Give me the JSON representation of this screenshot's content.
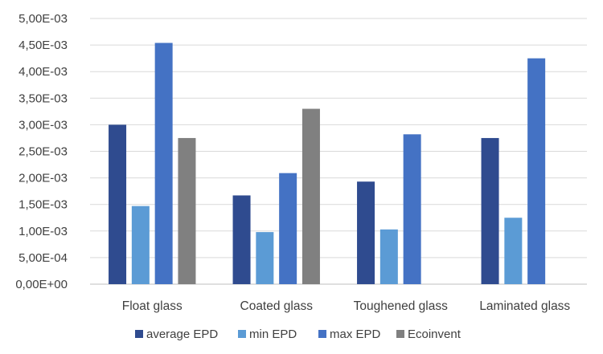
{
  "chart_data": {
    "type": "bar",
    "categories": [
      "Float glass",
      "Coated glass",
      "Toughened glass",
      "Laminated glass"
    ],
    "series": [
      {
        "name": "average EPD",
        "color": "#2F4B8F",
        "values": [
          0.003,
          0.00167,
          0.00193,
          0.00275
        ]
      },
      {
        "name": "min EPD",
        "color": "#5B9BD5",
        "values": [
          0.00147,
          0.00098,
          0.00103,
          0.00125
        ]
      },
      {
        "name": "max EPD",
        "color": "#4472C4",
        "values": [
          0.00454,
          0.00209,
          0.00282,
          0.00425
        ]
      },
      {
        "name": "Ecoinvent",
        "color": "#808080",
        "values": [
          0.00275,
          0.0033,
          0,
          0
        ]
      }
    ],
    "y_ticks": [
      "0,00E+00",
      "5,00E-04",
      "1,00E-03",
      "1,50E-03",
      "2,00E-03",
      "2,50E-03",
      "3,00E-03",
      "3,50E-03",
      "4,00E-03",
      "4,50E-03",
      "5,00E-03"
    ],
    "ylim": [
      0,
      0.005
    ],
    "grid": true,
    "legend_position": "bottom",
    "title": "",
    "xlabel": "",
    "ylabel": ""
  }
}
